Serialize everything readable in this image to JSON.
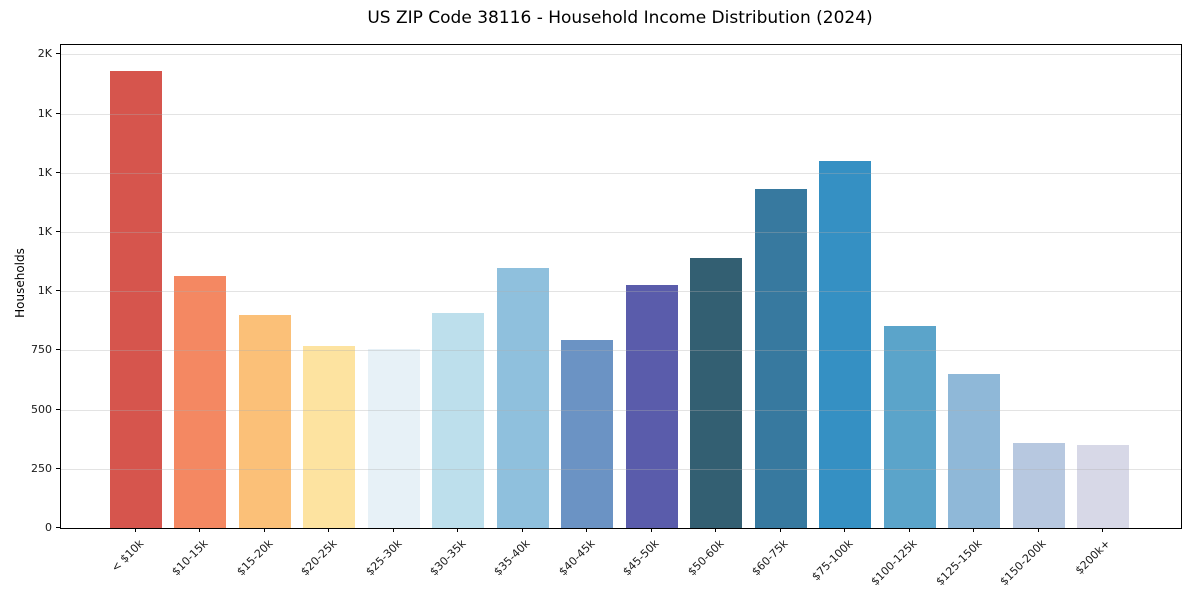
{
  "title": "US ZIP Code 38116 - Household Income Distribution (2024)",
  "chart_data": {
    "type": "bar",
    "title": "US ZIP Code 38116 - Household Income Distribution (2024)",
    "xlabel": "",
    "ylabel": "Households",
    "categories": [
      "< $10k",
      "$10-15k",
      "$15-20k",
      "$20-25k",
      "$25-30k",
      "$30-35k",
      "$35-40k",
      "$40-45k",
      "$45-50k",
      "$50-60k",
      "$60-75k",
      "$75-100k",
      "$100-125k",
      "$125-150k",
      "$150-200k",
      "$200k+"
    ],
    "values": [
      1930,
      1065,
      900,
      770,
      755,
      910,
      1100,
      795,
      1025,
      1140,
      1430,
      1550,
      855,
      650,
      360,
      350
    ],
    "bar_colors": [
      "#d6554d",
      "#f48862",
      "#fbc078",
      "#fde3a0",
      "#e7f1f7",
      "#bddfec",
      "#8fc0dd",
      "#6b93c4",
      "#5a5cab",
      "#335f72",
      "#37799f",
      "#3590c3",
      "#5ba4ca",
      "#8fb8d8",
      "#b7c8e0",
      "#d7d8e7"
    ],
    "ylim": [
      0,
      2040
    ],
    "y_ticks": [
      {
        "value": 0,
        "label": "0"
      },
      {
        "value": 250,
        "label": "250"
      },
      {
        "value": 500,
        "label": "500"
      },
      {
        "value": 750,
        "label": "750"
      },
      {
        "value": 1000,
        "label": "1K"
      },
      {
        "value": 1250,
        "label": "1K"
      },
      {
        "value": 1500,
        "label": "1K"
      },
      {
        "value": 1750,
        "label": "1K"
      },
      {
        "value": 2000,
        "label": "2K"
      }
    ],
    "grid": "horizontal",
    "legend": "none",
    "background_color": "#ffffff"
  }
}
